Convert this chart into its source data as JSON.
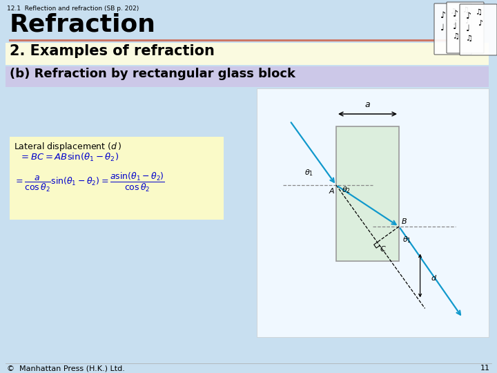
{
  "bg_color": "#c8dff0",
  "title_small": "12.1  Reflection and refraction (SB p. 202)",
  "title_large": "Refraction",
  "section_title": "2. Examples of refraction",
  "section_bg": "#fafae0",
  "subsection_title": "(b) Refraction by rectangular glass block",
  "subsection_bg": "#ccc8e8",
  "formula_bg": "#fafac8",
  "glass_color": "#dceedd",
  "glass_edge": "#999999",
  "ray_color": "#1199cc",
  "footer_text": "©  Manhattan Press (H.K.) Ltd.",
  "page_number": "11",
  "red_line_color": "#cc7766",
  "diag_bg": "#f0f8ff"
}
